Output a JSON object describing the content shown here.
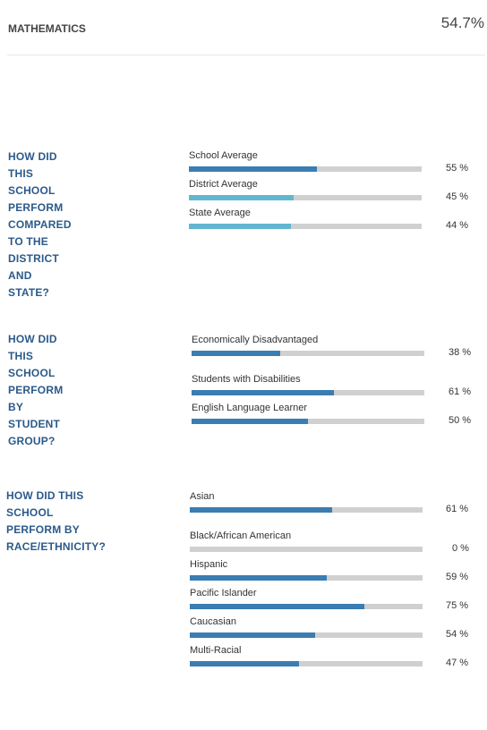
{
  "header": {
    "subject": "MATHEMATICS",
    "score": "54.7%"
  },
  "colors": {
    "primary_bar": "#3a7db2",
    "light_bar": "#62b7d0",
    "track": "#d0d0d0",
    "question_text": "#2b5a8a"
  },
  "sections": [
    {
      "question": [
        "HOW DID THIS SCHOOL PERFORM",
        "COMPARED TO THE DISTRICT AND",
        "STATE?"
      ],
      "rows": [
        {
          "label": "School Average",
          "value": 55,
          "pct_text": "55 %",
          "color": "#3a7db2"
        },
        {
          "label": "District Average",
          "value": 45,
          "pct_text": "45 %",
          "color": "#62b7d0"
        },
        {
          "label": "State Average",
          "value": 44,
          "pct_text": "44 %",
          "color": "#62b7d0"
        }
      ]
    },
    {
      "question": [
        "HOW DID THIS SCHOOL",
        "PERFORM BY STUDENT GROUP?"
      ],
      "rows": [
        {
          "label": "Economically Disadvantaged",
          "value": 38,
          "pct_text": "38 %",
          "color": "#3a7db2"
        },
        {
          "label": "Students with Disabilities",
          "value": 61,
          "pct_text": "61 %",
          "color": "#3a7db2"
        },
        {
          "label": "English Language Learner",
          "value": 50,
          "pct_text": "50 %",
          "color": "#3a7db2"
        }
      ]
    },
    {
      "question": [
        "HOW DID THIS SCHOOL",
        "PERFORM BY RACE/ETHNICITY?"
      ],
      "rows": [
        {
          "label": "Asian",
          "value": 61,
          "pct_text": "61 %",
          "color": "#3a7db2"
        },
        {
          "label": "Black/African American",
          "value": 0,
          "pct_text": "0 %",
          "color": "#3a7db2"
        },
        {
          "label": "Hispanic",
          "value": 59,
          "pct_text": "59 %",
          "color": "#3a7db2"
        },
        {
          "label": "Pacific Islander",
          "value": 75,
          "pct_text": "75 %",
          "color": "#3a7db2"
        },
        {
          "label": "Caucasian",
          "value": 54,
          "pct_text": "54 %",
          "color": "#3a7db2"
        },
        {
          "label": "Multi-Racial",
          "value": 47,
          "pct_text": "47 %",
          "color": "#3a7db2"
        }
      ]
    }
  ]
}
